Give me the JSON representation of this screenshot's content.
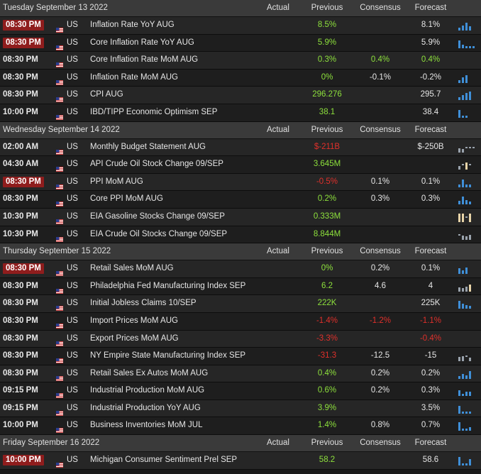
{
  "sections": [
    {
      "day": "Tuesday September 13 2022",
      "rows": [
        {
          "time": "08:30 PM",
          "hl": true,
          "country": "US",
          "event": "Inflation Rate YoY AUG",
          "actual": "",
          "previous": "8.5%",
          "prev_tone": "pos",
          "consensus": "",
          "cons_tone": "neu",
          "forecast": "8.1%",
          "fore_tone": "neu",
          "spark": "bars",
          "bars": [
            4,
            7,
            11,
            6
          ]
        },
        {
          "time": "08:30 PM",
          "hl": true,
          "country": "US",
          "event": "Core Inflation Rate YoY AUG",
          "actual": "",
          "previous": "5.9%",
          "prev_tone": "pos",
          "consensus": "",
          "cons_tone": "neu",
          "forecast": "5.9%",
          "fore_tone": "neu",
          "spark": "bars",
          "bars": [
            11,
            5,
            3,
            3,
            3
          ]
        },
        {
          "time": "08:30 PM",
          "hl": false,
          "country": "US",
          "event": "Core Inflation Rate MoM AUG",
          "actual": "",
          "previous": "0.3%",
          "prev_tone": "pos",
          "consensus": "0.4%",
          "cons_tone": "pos",
          "forecast": "0.4%",
          "fore_tone": "pos",
          "spark": "none",
          "bars": []
        },
        {
          "time": "08:30 PM",
          "hl": false,
          "country": "US",
          "event": "Inflation Rate MoM AUG",
          "actual": "",
          "previous": "0%",
          "prev_tone": "pos",
          "consensus": "-0.1%",
          "cons_tone": "neu",
          "forecast": "-0.2%",
          "fore_tone": "neu",
          "spark": "bars",
          "bars": [
            4,
            8,
            11
          ]
        },
        {
          "time": "08:30 PM",
          "hl": false,
          "country": "US",
          "event": "CPI AUG",
          "actual": "",
          "previous": "296.276",
          "prev_tone": "pos",
          "consensus": "",
          "cons_tone": "neu",
          "forecast": "295.7",
          "fore_tone": "neu",
          "spark": "bars",
          "bars": [
            4,
            7,
            10,
            12
          ]
        },
        {
          "time": "10:00 PM",
          "hl": false,
          "country": "US",
          "event": "IBD/TIPP Economic Optimism SEP",
          "actual": "",
          "previous": "38.1",
          "prev_tone": "pos",
          "consensus": "",
          "cons_tone": "neu",
          "forecast": "38.4",
          "fore_tone": "neu",
          "spark": "bars",
          "bars": [
            11,
            3,
            3
          ]
        }
      ]
    },
    {
      "day": "Wednesday September 14 2022",
      "rows": [
        {
          "time": "02:00 AM",
          "hl": false,
          "country": "US",
          "event": "Monthly Budget Statement AUG",
          "actual": "",
          "previous": "$-211B",
          "prev_tone": "neg",
          "consensus": "",
          "cons_tone": "neu",
          "forecast": "$-250B",
          "fore_tone": "neu",
          "spark": "dash",
          "bars": [
            6,
            5,
            4,
            3,
            4
          ]
        },
        {
          "time": "04:30 AM",
          "hl": false,
          "country": "US",
          "event": "API Crude Oil Stock Change 09/SEP",
          "actual": "",
          "previous": "3.645M",
          "prev_tone": "pos",
          "consensus": "",
          "cons_tone": "neu",
          "forecast": "",
          "fore_tone": "neu",
          "spark": "dash",
          "bars": [
            5,
            4,
            10,
            3
          ]
        },
        {
          "time": "08:30 PM",
          "hl": true,
          "country": "US",
          "event": "PPI MoM AUG",
          "actual": "",
          "previous": "-0.5%",
          "prev_tone": "neg",
          "consensus": "0.1%",
          "cons_tone": "neu",
          "forecast": "0.1%",
          "fore_tone": "neu",
          "spark": "bars",
          "bars": [
            4,
            11,
            4,
            4
          ]
        },
        {
          "time": "08:30 PM",
          "hl": false,
          "country": "US",
          "event": "Core PPI MoM AUG",
          "actual": "",
          "previous": "0.2%",
          "prev_tone": "pos",
          "consensus": "0.3%",
          "cons_tone": "neu",
          "forecast": "0.3%",
          "fore_tone": "neu",
          "spark": "bars",
          "bars": [
            5,
            11,
            6,
            4
          ]
        },
        {
          "time": "10:30 PM",
          "hl": false,
          "country": "US",
          "event": "EIA Gasoline Stocks Change 09/SEP",
          "actual": "",
          "previous": "0.333M",
          "prev_tone": "pos",
          "consensus": "",
          "cons_tone": "neu",
          "forecast": "",
          "fore_tone": "neu",
          "spark": "dash",
          "bars": [
            12,
            12,
            3,
            12
          ]
        },
        {
          "time": "10:30 PM",
          "hl": false,
          "country": "US",
          "event": "EIA Crude Oil Stocks Change 09/SEP",
          "actual": "",
          "previous": "8.844M",
          "prev_tone": "pos",
          "consensus": "",
          "cons_tone": "neu",
          "forecast": "",
          "fore_tone": "neu",
          "spark": "dash",
          "bars": [
            4,
            6,
            5,
            7
          ]
        }
      ]
    },
    {
      "day": "Thursday September 15 2022",
      "rows": [
        {
          "time": "08:30 PM",
          "hl": true,
          "country": "US",
          "event": "Retail Sales MoM AUG",
          "actual": "",
          "previous": "0%",
          "prev_tone": "pos",
          "consensus": "0.2%",
          "cons_tone": "neu",
          "forecast": "0.1%",
          "fore_tone": "neu",
          "spark": "bars",
          "bars": [
            8,
            5,
            9
          ]
        },
        {
          "time": "08:30 PM",
          "hl": false,
          "country": "US",
          "event": "Philadelphia Fed Manufacturing Index SEP",
          "actual": "",
          "previous": "6.2",
          "prev_tone": "pos",
          "consensus": "4.6",
          "cons_tone": "neu",
          "forecast": "4",
          "fore_tone": "neu",
          "spark": "dash",
          "bars": [
            6,
            5,
            7,
            10
          ]
        },
        {
          "time": "08:30 PM",
          "hl": false,
          "country": "US",
          "event": "Initial Jobless Claims 10/SEP",
          "actual": "",
          "previous": "222K",
          "prev_tone": "pos",
          "consensus": "",
          "cons_tone": "neu",
          "forecast": "225K",
          "fore_tone": "neu",
          "spark": "bars",
          "bars": [
            11,
            7,
            5,
            4
          ]
        },
        {
          "time": "08:30 PM",
          "hl": false,
          "country": "US",
          "event": "Import Prices MoM AUG",
          "actual": "",
          "previous": "-1.4%",
          "prev_tone": "neg",
          "consensus": "-1.2%",
          "cons_tone": "neg",
          "forecast": "-1.1%",
          "fore_tone": "neg",
          "spark": "none",
          "bars": []
        },
        {
          "time": "08:30 PM",
          "hl": false,
          "country": "US",
          "event": "Export Prices MoM AUG",
          "actual": "",
          "previous": "-3.3%",
          "prev_tone": "neg",
          "consensus": "",
          "cons_tone": "neu",
          "forecast": "-0.4%",
          "fore_tone": "neg",
          "spark": "none",
          "bars": []
        },
        {
          "time": "08:30 PM",
          "hl": false,
          "country": "US",
          "event": "NY Empire State Manufacturing Index SEP",
          "actual": "",
          "previous": "-31.3",
          "prev_tone": "neg",
          "consensus": "-12.5",
          "cons_tone": "neu",
          "forecast": "-15",
          "fore_tone": "neu",
          "spark": "dash",
          "bars": [
            6,
            7,
            4,
            5
          ]
        },
        {
          "time": "08:30 PM",
          "hl": false,
          "country": "US",
          "event": "Retail Sales Ex Autos MoM AUG",
          "actual": "",
          "previous": "0.4%",
          "prev_tone": "pos",
          "consensus": "0.2%",
          "cons_tone": "neu",
          "forecast": "0.2%",
          "fore_tone": "neu",
          "spark": "bars",
          "bars": [
            4,
            7,
            5,
            11
          ]
        },
        {
          "time": "09:15 PM",
          "hl": false,
          "country": "US",
          "event": "Industrial Production MoM AUG",
          "actual": "",
          "previous": "0.6%",
          "prev_tone": "pos",
          "consensus": "0.2%",
          "cons_tone": "neu",
          "forecast": "0.3%",
          "fore_tone": "neu",
          "spark": "bars",
          "bars": [
            8,
            3,
            6,
            6
          ]
        },
        {
          "time": "09:15 PM",
          "hl": false,
          "country": "US",
          "event": "Industrial Production YoY AUG",
          "actual": "",
          "previous": "3.9%",
          "prev_tone": "pos",
          "consensus": "",
          "cons_tone": "neu",
          "forecast": "3.5%",
          "fore_tone": "neu",
          "spark": "bars",
          "bars": [
            11,
            3,
            3,
            3
          ]
        },
        {
          "time": "10:00 PM",
          "hl": false,
          "country": "US",
          "event": "Business Inventories MoM JUL",
          "actual": "",
          "previous": "1.4%",
          "prev_tone": "pos",
          "consensus": "0.8%",
          "cons_tone": "neu",
          "forecast": "0.7%",
          "fore_tone": "neu",
          "spark": "bars",
          "bars": [
            12,
            3,
            3,
            5
          ]
        }
      ]
    },
    {
      "day": "Friday September 16 2022",
      "rows": [
        {
          "time": "10:00 PM",
          "hl": true,
          "country": "US",
          "event": "Michigan Consumer Sentiment Prel SEP",
          "actual": "",
          "previous": "58.2",
          "prev_tone": "pos",
          "consensus": "",
          "cons_tone": "neu",
          "forecast": "58.6",
          "fore_tone": "neu",
          "spark": "bars",
          "bars": [
            12,
            3,
            3,
            9
          ]
        }
      ]
    }
  ],
  "columns": {
    "actual": "Actual",
    "previous": "Previous",
    "consensus": "Consensus",
    "forecast": "Forecast"
  },
  "colors": {
    "positive": "#8de03c",
    "negative": "#e0302b",
    "highlight": "#8f1d1d",
    "spark": "#3f8fd8"
  }
}
